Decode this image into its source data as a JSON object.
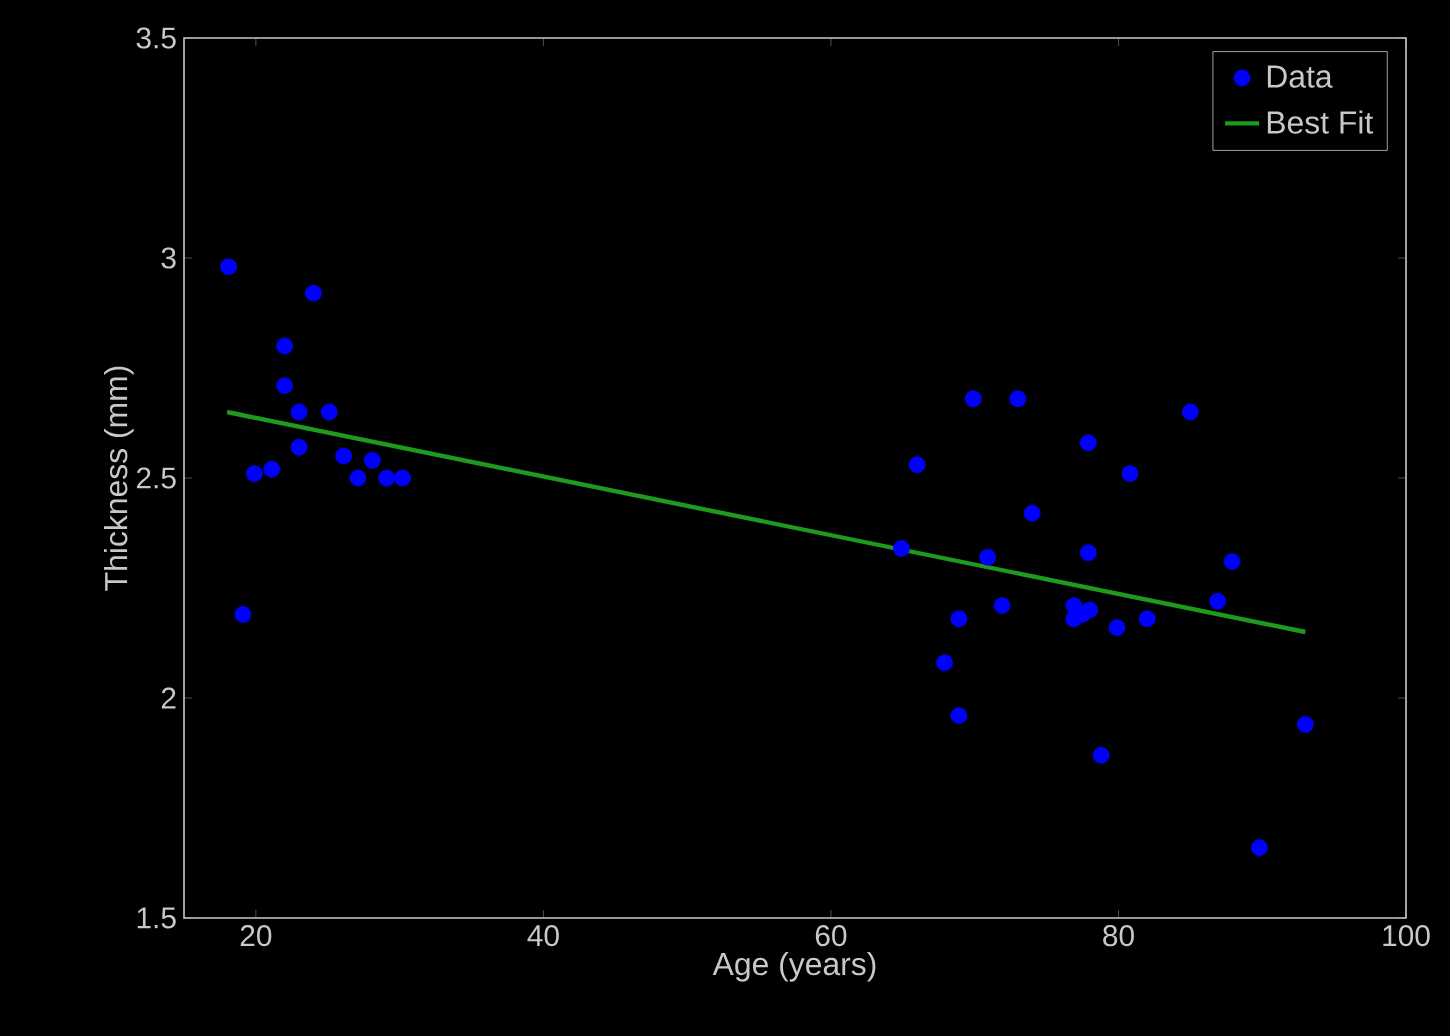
{
  "chart_data": {
    "type": "scatter",
    "xlabel": "Age (years)",
    "ylabel": "Thickness (mm)",
    "xlim": [
      15,
      100
    ],
    "xticks": [
      20,
      40,
      60,
      80,
      100
    ],
    "ylim": [
      1.5,
      3.5
    ],
    "yticks": [
      1.5,
      2,
      2.5,
      3,
      3.5
    ],
    "grid": false,
    "legend": "top right",
    "series": [
      {
        "name": "Data",
        "marker": "circle",
        "color": "#0000ff",
        "x": [
          18.1,
          19.1,
          19.9,
          21.1,
          22.0,
          22.0,
          23.0,
          23.0,
          24.0,
          25.1,
          26.1,
          27.1,
          28.1,
          29.1,
          30.2,
          64.9,
          66.0,
          67.9,
          68.9,
          68.9,
          69.9,
          70.9,
          71.9,
          73.0,
          74.0,
          76.9,
          76.9,
          77.5,
          77.9,
          77.9,
          78.0,
          78.8,
          79.9,
          80.8,
          82.0,
          85.0,
          86.9,
          87.9,
          89.8,
          93.0
        ],
        "values": [
          2.98,
          2.19,
          2.51,
          2.52,
          2.8,
          2.71,
          2.65,
          2.57,
          2.92,
          2.65,
          2.55,
          2.5,
          2.54,
          2.5,
          2.5,
          2.34,
          2.53,
          2.08,
          2.18,
          1.96,
          2.68,
          2.32,
          2.21,
          2.68,
          2.42,
          2.21,
          2.18,
          2.19,
          2.58,
          2.33,
          2.2,
          1.87,
          2.16,
          2.51,
          2.18,
          2.65,
          2.22,
          2.31,
          1.66,
          1.94
        ]
      },
      {
        "name": "Best Fit",
        "type": "line",
        "marker": "none",
        "color": "#1e9a1e",
        "x": [
          18,
          93
        ],
        "values": [
          2.65,
          2.15
        ]
      }
    ]
  }
}
